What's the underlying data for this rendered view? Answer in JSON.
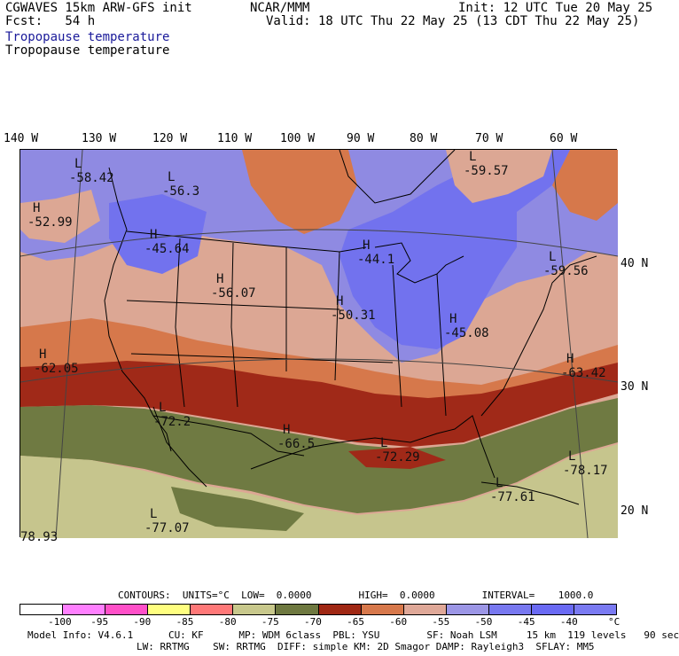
{
  "header": {
    "left_line1": "CGWAVES 15km ARW-GFS init",
    "left_line2": "Fcst:   54 h",
    "center": "NCAR/MMM",
    "init": "Init: 12 UTC Tue 20 May 25",
    "valid": "Valid: 18 UTC Thu 22 May 25 (13 CDT Thu 22 May 25)",
    "field_title_1": "Tropopause temperature",
    "field_title_2": "Tropopause temperature"
  },
  "longitudes": [
    "140 W",
    "130 W",
    "120 W",
    "110 W",
    "100 W",
    "90 W",
    "80 W",
    "70 W",
    "60 W"
  ],
  "latitudes": [
    "40 N",
    "30 N",
    "20 N"
  ],
  "extrema": [
    {
      "type": "H",
      "value": "-52.99"
    },
    {
      "type": "L",
      "value": "-58.42"
    },
    {
      "type": "L",
      "value": "-56.3"
    },
    {
      "type": "H",
      "value": "-45.64"
    },
    {
      "type": "H",
      "value": "-56.07"
    },
    {
      "type": "H",
      "value": "-50.31"
    },
    {
      "type": "L",
      "value": "-59.57"
    },
    {
      "type": "H",
      "value": "-44.1"
    },
    {
      "type": "L",
      "value": "-59.56"
    },
    {
      "type": "H",
      "value": "-45.08"
    },
    {
      "type": "H",
      "value": "-62.05"
    },
    {
      "type": "H",
      "value": "-63.42"
    },
    {
      "type": "L",
      "value": "-72.2"
    },
    {
      "type": "H",
      "value": "-66.5"
    },
    {
      "type": "L",
      "value": "-72.29"
    },
    {
      "type": "L",
      "value": "-78.17"
    },
    {
      "type": "L",
      "value": "-77.61"
    },
    {
      "type": "L",
      "value": "-77.07"
    },
    {
      "type": "",
      "value": "78.93"
    }
  ],
  "contours_info": "CONTOURS:  UNITS=°C  LOW=  0.0000        HIGH=  0.0000        INTERVAL=    1000.0",
  "colorbar": {
    "colors": [
      "#ffffff",
      "#ff80ff",
      "#ff50c8",
      "#ffff80",
      "#ff7878",
      "#c8c88c",
      "#6e7840",
      "#a02814",
      "#d7784b",
      "#dfa898",
      "#9c96e6",
      "#7878f0",
      "#6a6af4",
      "#7a7af2"
    ],
    "ticks": [
      "-100",
      "-95",
      "-90",
      "-85",
      "-80",
      "-75",
      "-70",
      "-65",
      "-60",
      "-55",
      "-50",
      "-45",
      "-40",
      "°C"
    ]
  },
  "footer": {
    "line1": "Model Info: V4.6.1      CU: KF      MP: WDM 6class  PBL: YSU        SF: Noah LSM     15 km  119 levels   90 sec",
    "line2": "LW: RRTMG    SW: RRTMG  DIFF: simple KM: 2D Smagor DAMP: Rayleigh3  SFLAY: MM5"
  }
}
